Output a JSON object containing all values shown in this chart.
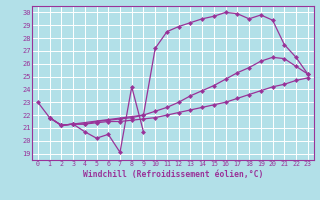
{
  "xlabel": "Windchill (Refroidissement éolien,°C)",
  "xlim": [
    -0.5,
    23.5
  ],
  "ylim": [
    18.5,
    30.5
  ],
  "yticks": [
    19,
    20,
    21,
    22,
    23,
    24,
    25,
    26,
    27,
    28,
    29,
    30
  ],
  "xticks": [
    0,
    1,
    2,
    3,
    4,
    5,
    6,
    7,
    8,
    9,
    10,
    11,
    12,
    13,
    14,
    15,
    16,
    17,
    18,
    19,
    20,
    21,
    22,
    23
  ],
  "bg_color": "#b2e0e8",
  "grid_color": "#ffffff",
  "line_color": "#993399",
  "line1_x": [
    0,
    1,
    2,
    3,
    4,
    5,
    6,
    7,
    8,
    9
  ],
  "line1_y": [
    23.0,
    21.8,
    21.2,
    21.3,
    20.7,
    20.2,
    20.5,
    19.1,
    24.2,
    20.7
  ],
  "line2_x": [
    1,
    2,
    3,
    4,
    5,
    6,
    7,
    8,
    9,
    10,
    11,
    12,
    13,
    14,
    15,
    16,
    17,
    18,
    19,
    20,
    21,
    22,
    23
  ],
  "line2_y": [
    21.8,
    21.2,
    21.3,
    21.3,
    21.4,
    21.5,
    21.5,
    21.6,
    21.7,
    21.8,
    22.0,
    22.2,
    22.4,
    22.6,
    22.8,
    23.0,
    23.3,
    23.6,
    23.9,
    24.2,
    24.4,
    24.7,
    24.9
  ],
  "line3_x": [
    1,
    2,
    3,
    4,
    5,
    6,
    7,
    8,
    9,
    10,
    11,
    12,
    13,
    14,
    15,
    16,
    17,
    18,
    19,
    20,
    21,
    22,
    23
  ],
  "line3_y": [
    21.8,
    21.2,
    21.3,
    21.3,
    21.5,
    21.6,
    21.7,
    21.8,
    22.0,
    22.3,
    22.6,
    23.0,
    23.5,
    23.9,
    24.3,
    24.8,
    25.3,
    25.7,
    26.2,
    26.5,
    26.4,
    25.8,
    25.2
  ],
  "line4_x": [
    1,
    2,
    3,
    9,
    10,
    11,
    12,
    13,
    14,
    15,
    16,
    17,
    18,
    19,
    20,
    21,
    22,
    23
  ],
  "line4_y": [
    21.8,
    21.2,
    21.3,
    22.0,
    27.2,
    28.5,
    28.9,
    29.2,
    29.5,
    29.7,
    30.0,
    29.9,
    29.5,
    29.8,
    29.4,
    27.5,
    26.5,
    25.2
  ]
}
